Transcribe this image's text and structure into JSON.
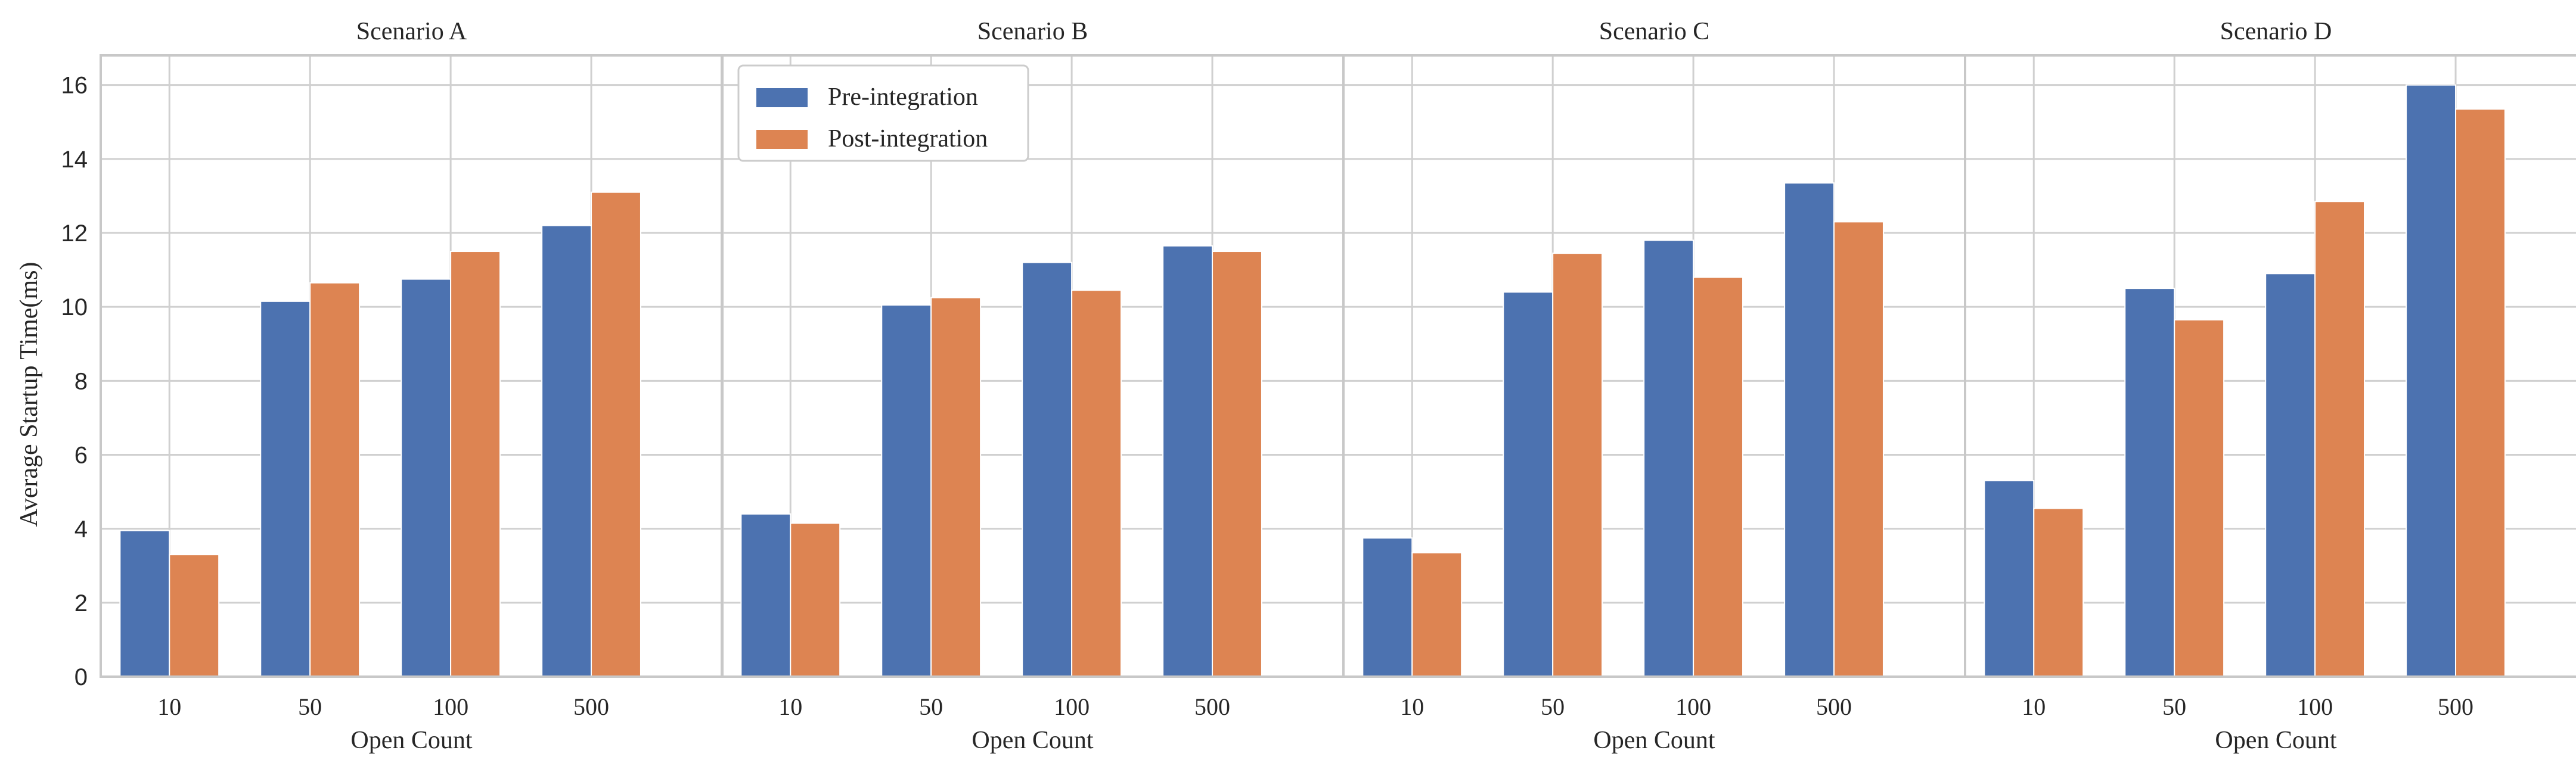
{
  "chart_data": {
    "type": "bar",
    "ylabel": "Average Startup Time(ms)",
    "xlabel": "Open Count",
    "ylim": [
      0,
      16.8
    ],
    "yticks": [
      0,
      2,
      4,
      6,
      8,
      10,
      12,
      14,
      16
    ],
    "categories": [
      "10",
      "50",
      "100",
      "500"
    ],
    "legend": {
      "placement": "top-left of second panel"
    },
    "colors": {
      "Pre-integration": "#4c72b0",
      "Post-integration": "#dd8452"
    },
    "grid": true,
    "panels": [
      {
        "title": "Scenario A",
        "series": [
          {
            "name": "Pre-integration",
            "values": [
              3.95,
              10.15,
              10.75,
              12.2
            ]
          },
          {
            "name": "Post-integration",
            "values": [
              3.3,
              10.65,
              11.5,
              13.1
            ]
          }
        ]
      },
      {
        "title": "Scenario B",
        "series": [
          {
            "name": "Pre-integration",
            "values": [
              4.4,
              10.05,
              11.2,
              11.65
            ]
          },
          {
            "name": "Post-integration",
            "values": [
              4.15,
              10.25,
              10.45,
              11.5
            ]
          }
        ]
      },
      {
        "title": "Scenario C",
        "series": [
          {
            "name": "Pre-integration",
            "values": [
              3.75,
              10.4,
              11.8,
              13.35
            ]
          },
          {
            "name": "Post-integration",
            "values": [
              3.35,
              11.45,
              10.8,
              12.3
            ]
          }
        ]
      },
      {
        "title": "Scenario D",
        "series": [
          {
            "name": "Pre-integration",
            "values": [
              5.3,
              10.5,
              10.9,
              16.0
            ]
          },
          {
            "name": "Post-integration",
            "values": [
              4.55,
              9.65,
              12.85,
              15.35
            ]
          }
        ]
      }
    ]
  }
}
